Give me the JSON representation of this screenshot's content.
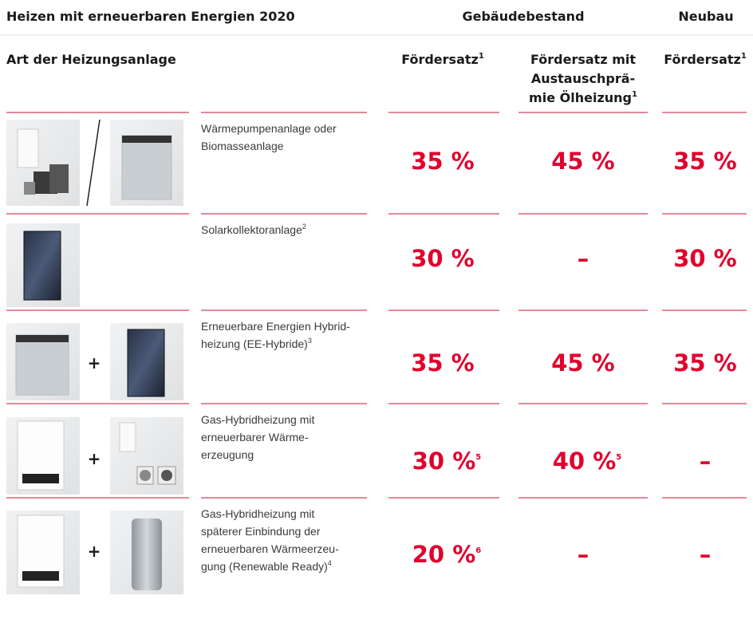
{
  "header": {
    "title": "Heizen mit erneuerbaren Energien 2020",
    "group_existing": "Gebäudebestand",
    "group_new": "Neubau"
  },
  "columns": {
    "type": "Art der Heizungsanlage",
    "existing": {
      "label": "Fördersatz",
      "note": "1"
    },
    "bonus": {
      "lines": [
        "Fördersatz mit",
        "Austauschprä-",
        "mie Ölheizung"
      ],
      "note": "1"
    },
    "new": {
      "label": "Fördersatz",
      "note": "1"
    }
  },
  "rows": [
    {
      "description": [
        "Wärmepumpenanlage oder",
        "Biomasseanlage"
      ],
      "existing": {
        "value": "35 %"
      },
      "bonus": {
        "value": "45 %"
      },
      "new": {
        "value": "35 %"
      }
    },
    {
      "description": [
        "Solarkollektoranlage"
      ],
      "description_note": "2",
      "existing": {
        "value": "30 %"
      },
      "bonus": {
        "value": "–"
      },
      "new": {
        "value": "30 %"
      }
    },
    {
      "connector": "+",
      "description": [
        "Erneuerbare Energien Hybrid-",
        "heizung (EE-Hybride)"
      ],
      "description_note": "3",
      "existing": {
        "value": "35 %"
      },
      "bonus": {
        "value": "45 %"
      },
      "new": {
        "value": "35 %"
      }
    },
    {
      "connector": "+",
      "description": [
        "Gas-Hybridheizung mit",
        "erneuerbarer Wärme-",
        "erzeugung"
      ],
      "existing": {
        "value": "30 %",
        "note": "5"
      },
      "bonus": {
        "value": "40 %",
        "note": "5"
      },
      "new": {
        "value": "–"
      }
    },
    {
      "connector": "+",
      "description": [
        "Gas-Hybridheizung mit",
        "späterer Einbindung der",
        "erneuerbaren Wärmeerzeu-",
        "gung (Renewable Ready)"
      ],
      "description_note": "4",
      "existing": {
        "value": "20 %",
        "note": "6"
      },
      "bonus": {
        "value": "–"
      },
      "new": {
        "value": "–"
      }
    }
  ]
}
